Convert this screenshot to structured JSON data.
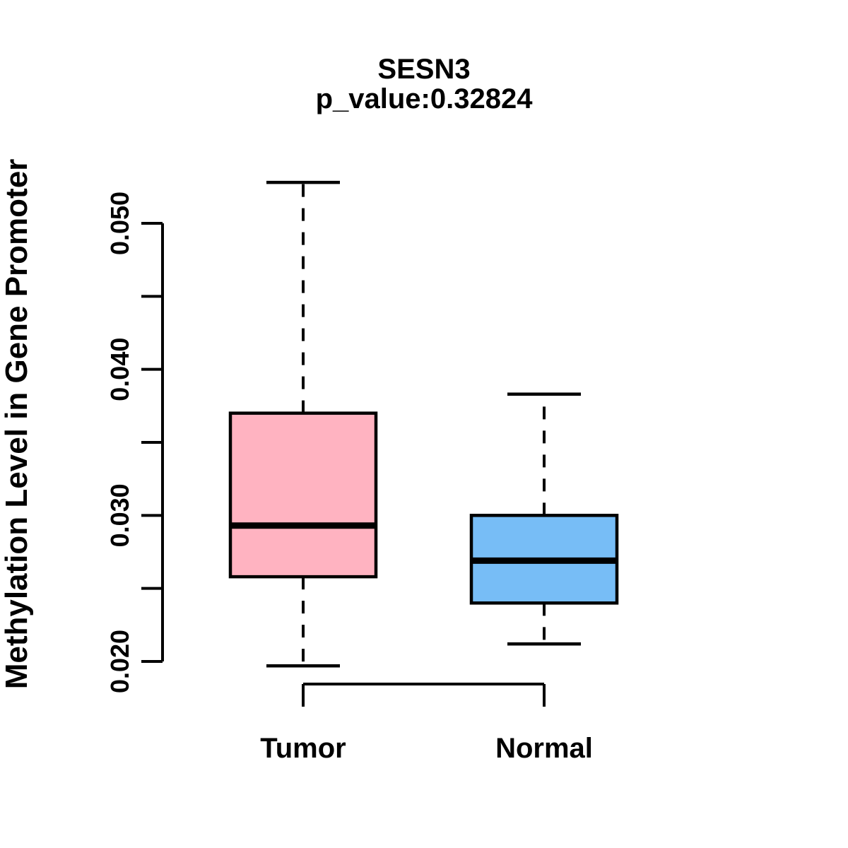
{
  "chart_data": {
    "type": "boxplot",
    "title": "SESN3",
    "subtitle": "p_value:0.32824",
    "gene": "SESN3",
    "p_value": 0.32824,
    "ylabel": "Methylation Level in Gene Promoter",
    "xlabel": "",
    "ylim": [
      0.02,
      0.05
    ],
    "grid": false,
    "legend": "none",
    "y_ticks": [
      {
        "value": 0.02,
        "label": "0.020"
      },
      {
        "value": 0.025,
        "label": ""
      },
      {
        "value": 0.03,
        "label": "0.030"
      },
      {
        "value": 0.035,
        "label": ""
      },
      {
        "value": 0.04,
        "label": "0.040"
      },
      {
        "value": 0.045,
        "label": ""
      },
      {
        "value": 0.05,
        "label": "0.050"
      }
    ],
    "categories": [
      "Tumor",
      "Normal"
    ],
    "groups": [
      {
        "label": "Tumor",
        "color": "#FFB3C1",
        "stats": {
          "lower_whisker": 0.0197,
          "q1": 0.0258,
          "median": 0.0293,
          "q3": 0.037,
          "upper_whisker": 0.0528
        }
      },
      {
        "label": "Normal",
        "color": "#77BDF6",
        "stats": {
          "lower_whisker": 0.0212,
          "q1": 0.024,
          "median": 0.0269,
          "q3": 0.03,
          "upper_whisker": 0.0383
        }
      }
    ],
    "whisker_style": "dashed",
    "outline_color": "#000000",
    "background_color": "#FFFFFF"
  }
}
